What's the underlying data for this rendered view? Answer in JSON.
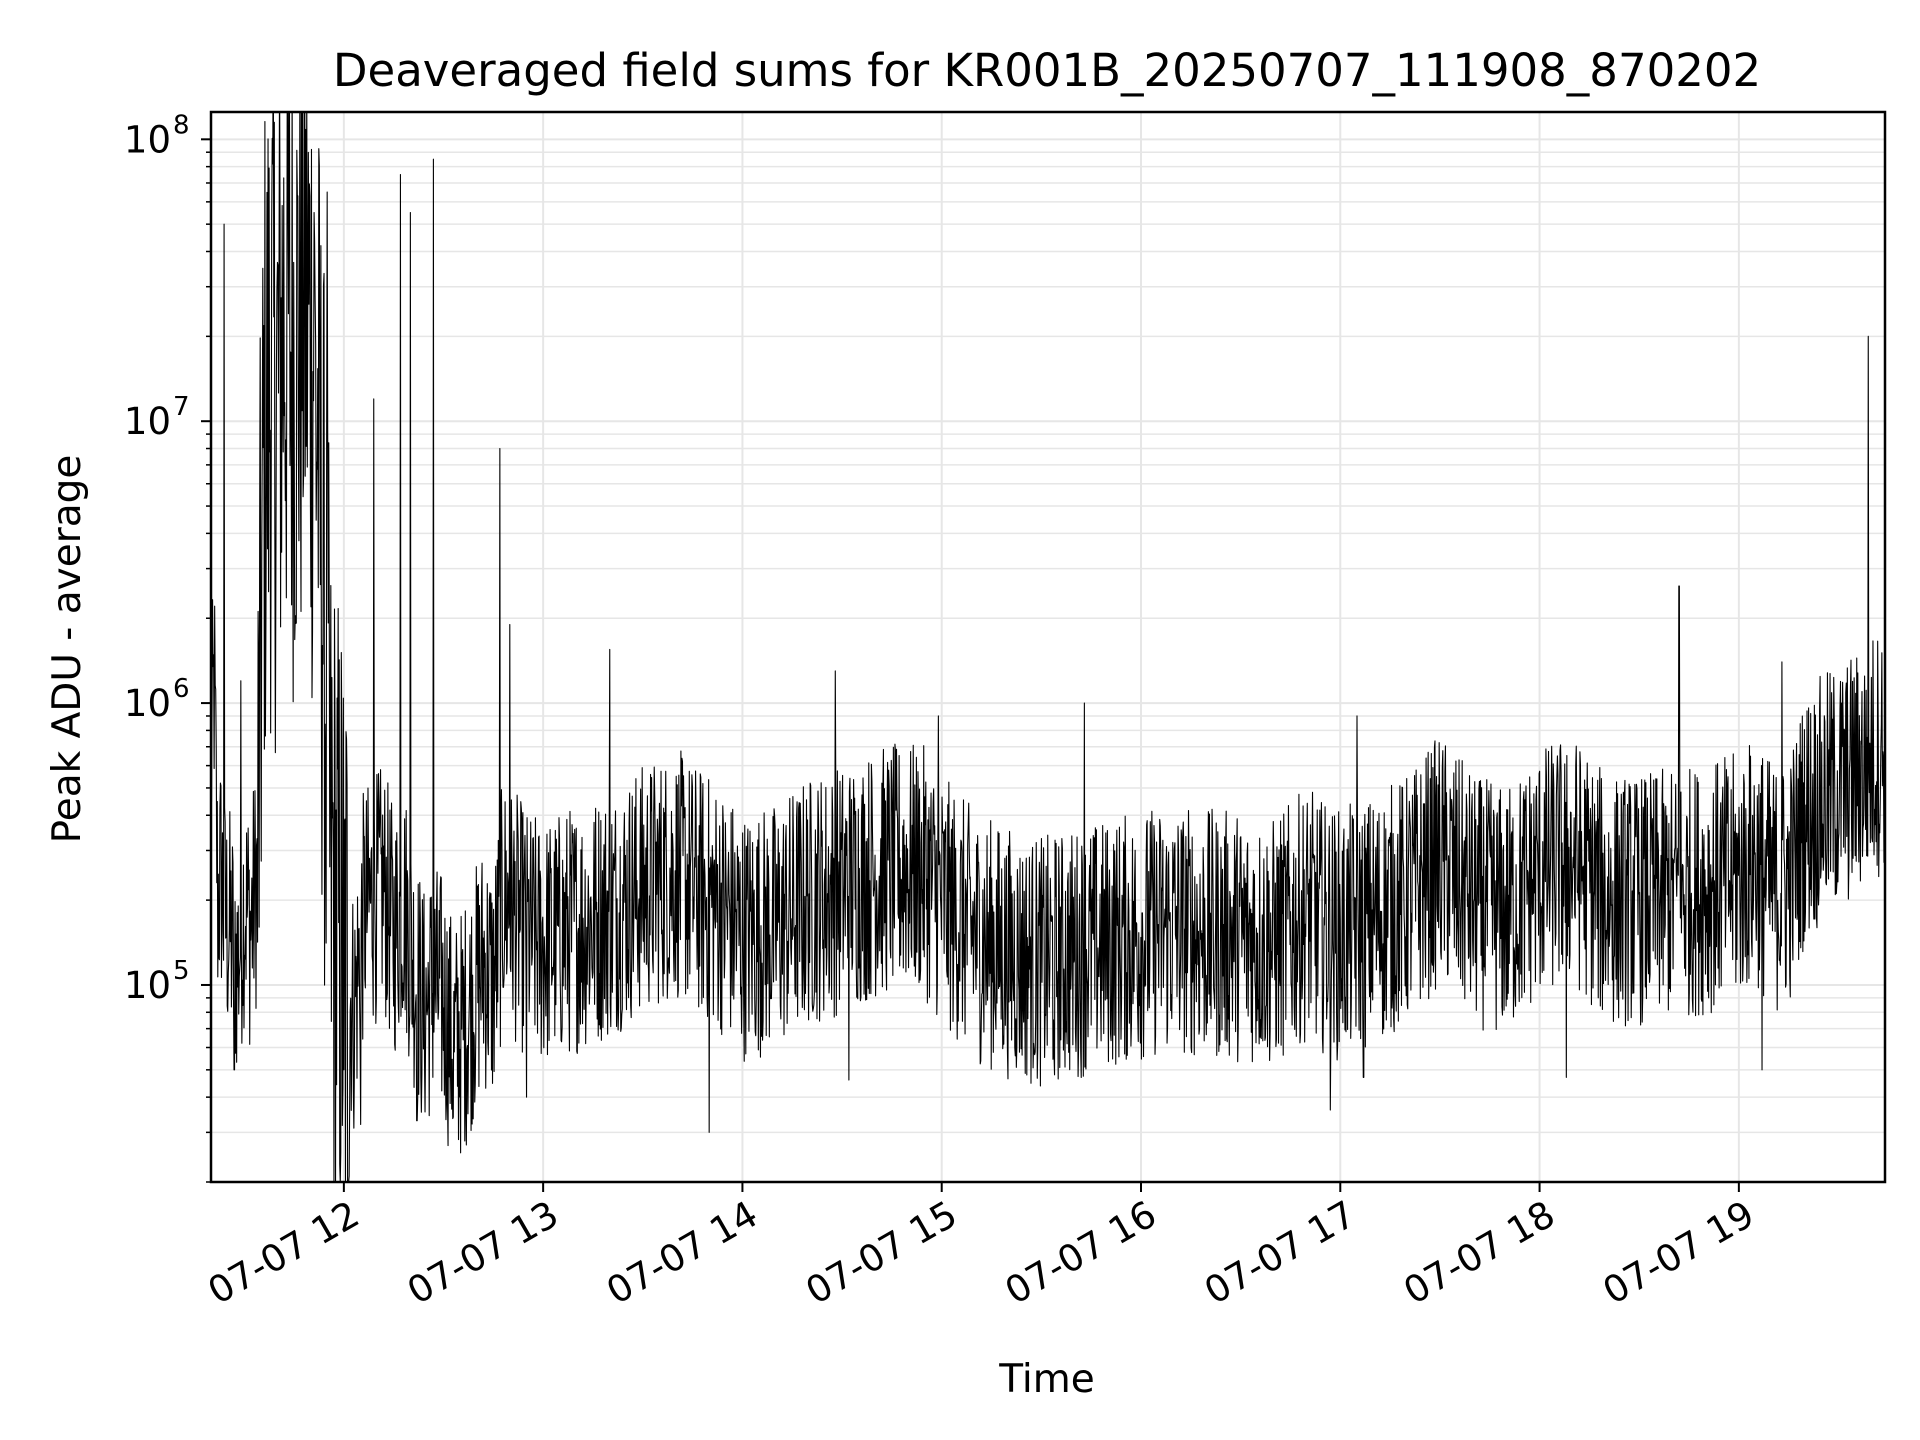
{
  "chart_data": {
    "type": "line",
    "title": "Deaveraged field sums for KR001B_20250707_111908_870202",
    "xlabel": "Time",
    "ylabel": "Peak ADU - average",
    "yscale": "log",
    "ylim": [
      20000,
      125000000
    ],
    "xlim": [
      "2025-07-07T11:20",
      "2025-07-07T19:44"
    ],
    "x_ticks": [
      "07-07 12",
      "07-07 13",
      "07-07 14",
      "07-07 15",
      "07-07 16",
      "07-07 17",
      "07-07 18",
      "07-07 19"
    ],
    "y_ticks": [
      {
        "base": "10",
        "exp": "5",
        "value": 100000
      },
      {
        "base": "10",
        "exp": "6",
        "value": 1000000
      },
      {
        "base": "10",
        "exp": "7",
        "value": 10000000
      },
      {
        "base": "10",
        "exp": "8",
        "value": 100000000
      }
    ],
    "grid": true,
    "line_color": "#000000",
    "grid_color": "#e6e6e6",
    "series": [
      {
        "x": [
          "2025-07-07T11:20",
          "2025-07-07T11:21",
          "2025-07-07T11:22",
          "2025-07-07T11:23",
          "2025-07-07T11:24",
          "2025-07-07T11:26",
          "2025-07-07T11:28",
          "2025-07-07T11:30",
          "2025-07-07T11:32",
          "2025-07-07T11:34",
          "2025-07-07T11:36",
          "2025-07-07T11:38",
          "2025-07-07T11:40",
          "2025-07-07T11:42",
          "2025-07-07T11:44",
          "2025-07-07T11:46",
          "2025-07-07T11:48",
          "2025-07-07T11:50",
          "2025-07-07T11:52",
          "2025-07-07T11:54",
          "2025-07-07T11:56",
          "2025-07-07T11:58",
          "2025-07-07T12:00",
          "2025-07-07T12:03",
          "2025-07-07T12:06",
          "2025-07-07T12:09",
          "2025-07-07T12:12",
          "2025-07-07T12:15",
          "2025-07-07T12:18",
          "2025-07-07T12:21",
          "2025-07-07T12:24",
          "2025-07-07T12:27",
          "2025-07-07T12:30",
          "2025-07-07T12:33",
          "2025-07-07T12:36",
          "2025-07-07T12:39",
          "2025-07-07T12:42",
          "2025-07-07T12:45",
          "2025-07-07T12:48",
          "2025-07-07T12:51",
          "2025-07-07T12:55",
          "2025-07-07T13:00",
          "2025-07-07T13:10",
          "2025-07-07T13:20",
          "2025-07-07T13:30",
          "2025-07-07T13:40",
          "2025-07-07T13:50",
          "2025-07-07T13:55",
          "2025-07-07T14:00",
          "2025-07-07T14:10",
          "2025-07-07T14:20",
          "2025-07-07T14:30",
          "2025-07-07T14:40",
          "2025-07-07T14:50",
          "2025-07-07T14:55",
          "2025-07-07T15:00",
          "2025-07-07T15:10",
          "2025-07-07T15:20",
          "2025-07-07T15:30",
          "2025-07-07T15:40",
          "2025-07-07T15:50",
          "2025-07-07T16:00",
          "2025-07-07T16:10",
          "2025-07-07T16:20",
          "2025-07-07T16:30",
          "2025-07-07T16:40",
          "2025-07-07T16:50",
          "2025-07-07T16:55",
          "2025-07-07T17:00",
          "2025-07-07T17:10",
          "2025-07-07T17:20",
          "2025-07-07T17:30",
          "2025-07-07T17:40",
          "2025-07-07T17:50",
          "2025-07-07T18:00",
          "2025-07-07T18:10",
          "2025-07-07T18:20",
          "2025-07-07T18:30",
          "2025-07-07T18:40",
          "2025-07-07T18:50",
          "2025-07-07T19:00",
          "2025-07-07T19:05",
          "2025-07-07T19:10",
          "2025-07-07T19:15",
          "2025-07-07T19:20",
          "2025-07-07T19:25",
          "2025-07-07T19:30",
          "2025-07-07T19:35",
          "2025-07-07T19:40",
          "2025-07-07T19:44"
        ],
        "y": [
          600000,
          1200000,
          200000,
          250000,
          180000,
          150000,
          120000,
          200000,
          160000,
          250000,
          8000000,
          15000000,
          12000000,
          25000000,
          20000000,
          18000000,
          30000000,
          20000000,
          10000000,
          2000000,
          250000,
          150000,
          120000,
          80000,
          180000,
          200000,
          220000,
          150000,
          200000,
          120000,
          80000,
          100000,
          90000,
          60000,
          70000,
          90000,
          120000,
          100000,
          200000,
          180000,
          150000,
          140000,
          160000,
          180000,
          220000,
          250000,
          200000,
          180000,
          150000,
          160000,
          200000,
          220000,
          250000,
          260000,
          250000,
          200000,
          150000,
          130000,
          120000,
          130000,
          140000,
          150000,
          160000,
          150000,
          150000,
          140000,
          180000,
          160000,
          150000,
          170000,
          200000,
          280000,
          200000,
          180000,
          250000,
          280000,
          200000,
          200000,
          210000,
          220000,
          240000,
          280000,
          220000,
          230000,
          400000,
          450000,
          500000,
          550000,
          650000,
          700000
        ]
      }
    ],
    "spikes": [
      {
        "x": "2025-07-07T11:24",
        "y": 50000000
      },
      {
        "x": "2025-07-07T11:29",
        "y": 1200000
      },
      {
        "x": "2025-07-07T11:51",
        "y": 55000000
      },
      {
        "x": "2025-07-07T11:55",
        "y": 65000000
      },
      {
        "x": "2025-07-07T12:09",
        "y": 12000000
      },
      {
        "x": "2025-07-07T12:17",
        "y": 75000000
      },
      {
        "x": "2025-07-07T12:20",
        "y": 55000000
      },
      {
        "x": "2025-07-07T12:27",
        "y": 85000000
      },
      {
        "x": "2025-07-07T12:47",
        "y": 8000000
      },
      {
        "x": "2025-07-07T12:50",
        "y": 1900000
      },
      {
        "x": "2025-07-07T13:20",
        "y": 1550000
      },
      {
        "x": "2025-07-07T14:28",
        "y": 1300000
      },
      {
        "x": "2025-07-07T14:59",
        "y": 900000
      },
      {
        "x": "2025-07-07T15:43",
        "y": 1000000
      },
      {
        "x": "2025-07-07T17:05",
        "y": 900000
      },
      {
        "x": "2025-07-07T18:42",
        "y": 2600000
      },
      {
        "x": "2025-07-07T19:13",
        "y": 1400000
      },
      {
        "x": "2025-07-07T19:39",
        "y": 20000000
      }
    ],
    "dips": [
      {
        "x": "2025-07-07T11:27",
        "y": 50000
      },
      {
        "x": "2025-07-07T12:00",
        "y": 50000
      },
      {
        "x": "2025-07-07T12:05",
        "y": 32000
      },
      {
        "x": "2025-07-07T12:22",
        "y": 33000
      },
      {
        "x": "2025-07-07T12:33",
        "y": 34000
      },
      {
        "x": "2025-07-07T12:55",
        "y": 40000
      },
      {
        "x": "2025-07-07T13:50",
        "y": 30000
      },
      {
        "x": "2025-07-07T14:32",
        "y": 46000
      },
      {
        "x": "2025-07-07T15:34",
        "y": 48000
      },
      {
        "x": "2025-07-07T16:57",
        "y": 36000
      },
      {
        "x": "2025-07-07T17:07",
        "y": 47000
      },
      {
        "x": "2025-07-07T18:08",
        "y": 47000
      },
      {
        "x": "2025-07-07T19:07",
        "y": 50000
      }
    ]
  }
}
